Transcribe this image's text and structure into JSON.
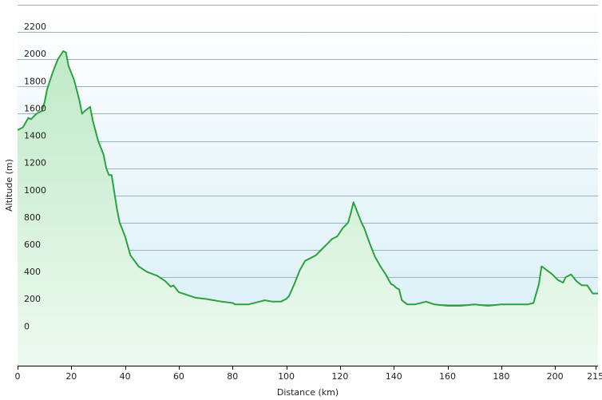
{
  "chart_data": {
    "type": "area",
    "title": "",
    "xlabel": "Distance  (km)",
    "ylabel": "Altitude (m)",
    "xlim": [
      0,
      216
    ],
    "ylim": [
      -250,
      2400
    ],
    "x_ticks": [
      0,
      20,
      40,
      60,
      80,
      100,
      120,
      140,
      160,
      180,
      200,
      215
    ],
    "y_ticks": [
      0,
      200,
      400,
      600,
      800,
      1000,
      1200,
      1400,
      1600,
      1800,
      2000,
      2200
    ],
    "grid": true,
    "colors": {
      "line": "#2ea043",
      "fill_top": "#bfe9c8",
      "fill_bottom": "#eefaf0",
      "bg_top": "#ffffff",
      "bg_bottom": "#d6eef6",
      "grid": "#9ab3bf"
    },
    "series": [
      {
        "x": [
          0,
          2,
          4,
          5,
          7,
          9,
          10,
          11,
          13,
          15,
          17,
          18,
          19,
          21,
          23,
          24,
          25,
          27,
          28,
          30,
          32,
          33,
          34,
          35,
          37,
          38,
          39,
          40,
          42,
          45,
          48,
          52,
          55,
          57,
          58,
          60,
          63,
          66,
          70,
          73,
          76,
          80,
          81,
          83,
          86,
          90,
          92,
          95,
          98,
          100,
          101,
          103,
          105,
          107,
          109,
          111,
          113,
          115,
          117,
          119,
          121,
          123,
          124,
          125,
          126,
          127,
          128,
          129,
          131,
          133,
          135,
          137,
          139,
          140,
          141,
          142,
          143,
          145,
          148,
          152,
          155,
          160,
          165,
          170,
          175,
          180,
          185,
          190,
          192,
          194,
          195,
          197,
          199,
          201,
          203,
          204,
          206,
          208,
          210,
          212,
          214,
          216
        ],
        "y": [
          1480,
          1500,
          1570,
          1560,
          1600,
          1620,
          1680,
          1780,
          1900,
          2000,
          2060,
          2050,
          1950,
          1850,
          1700,
          1600,
          1620,
          1650,
          1550,
          1400,
          1300,
          1200,
          1150,
          1150,
          900,
          800,
          750,
          700,
          560,
          480,
          440,
          410,
          370,
          330,
          340,
          290,
          270,
          250,
          240,
          230,
          220,
          210,
          200,
          200,
          200,
          220,
          230,
          220,
          220,
          240,
          260,
          350,
          450,
          520,
          540,
          560,
          600,
          640,
          680,
          700,
          760,
          800,
          870,
          950,
          900,
          850,
          800,
          760,
          650,
          550,
          480,
          420,
          350,
          340,
          320,
          310,
          230,
          200,
          200,
          220,
          200,
          190,
          190,
          200,
          190,
          200,
          200,
          200,
          210,
          350,
          480,
          450,
          420,
          380,
          360,
          400,
          420,
          370,
          340,
          340,
          280,
          280
        ]
      }
    ]
  }
}
